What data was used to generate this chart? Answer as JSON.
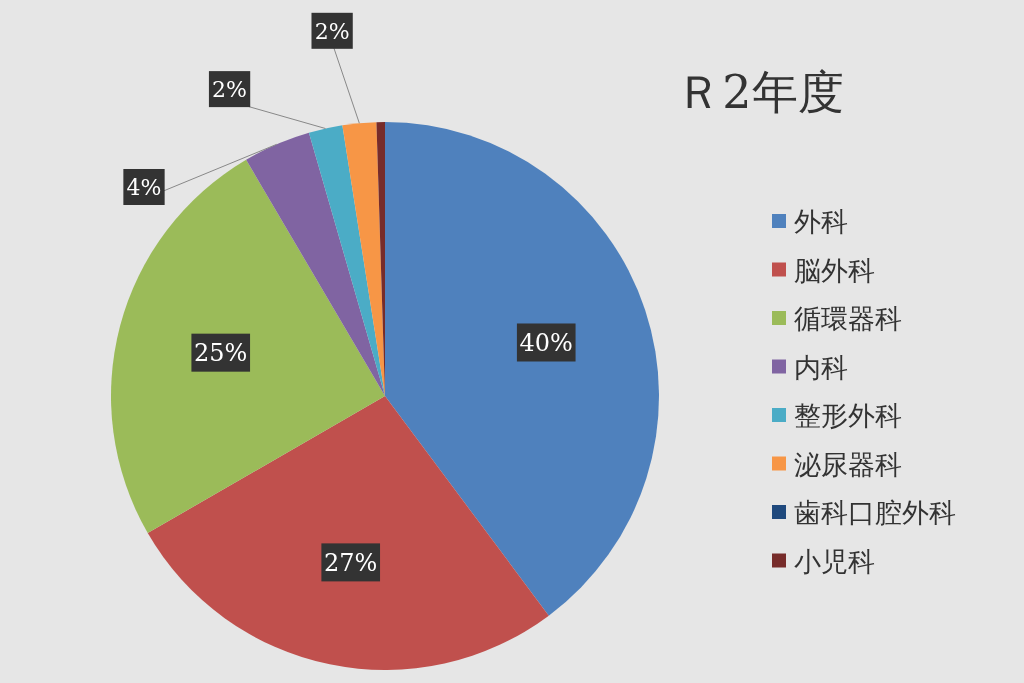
{
  "chart_data": {
    "type": "pie",
    "title": "Ｒ2年度",
    "categories": [
      "外科",
      "脳外科",
      "循環器科",
      "内科",
      "整形外科",
      "泌尿器科",
      "歯科口腔外科",
      "小児科"
    ],
    "values": [
      40,
      27,
      25,
      4,
      2,
      2,
      0,
      0.5
    ],
    "value_labels": [
      "40%",
      "27%",
      "25%",
      "4%",
      "2%",
      "2%",
      null,
      null
    ],
    "colors": [
      "#4f81bd",
      "#c0504d",
      "#9bbb59",
      "#8064a2",
      "#4bacc6",
      "#f79646",
      "#1f497d",
      "#772c2a"
    ],
    "legend": "right"
  }
}
